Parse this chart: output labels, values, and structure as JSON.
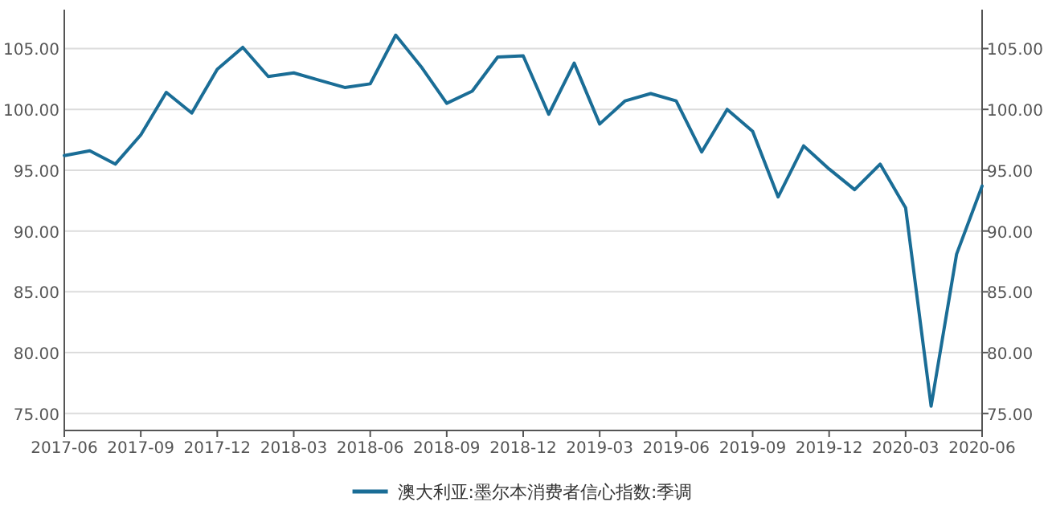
{
  "chart_data": {
    "type": "line",
    "x": [
      "2017-06",
      "2017-07",
      "2017-08",
      "2017-09",
      "2017-10",
      "2017-11",
      "2017-12",
      "2018-01",
      "2018-02",
      "2018-03",
      "2018-04",
      "2018-05",
      "2018-06",
      "2018-07",
      "2018-08",
      "2018-09",
      "2018-10",
      "2018-11",
      "2018-12",
      "2019-01",
      "2019-02",
      "2019-03",
      "2019-04",
      "2019-05",
      "2019-06",
      "2019-07",
      "2019-08",
      "2019-09",
      "2019-10",
      "2019-11",
      "2019-12",
      "2020-01",
      "2020-02",
      "2020-03",
      "2020-04",
      "2020-05",
      "2020-06"
    ],
    "series": [
      {
        "name": "澳大利亚:墨尔本消费者信心指数:季调",
        "color": "#1a6d96",
        "values": [
          96.2,
          96.6,
          95.5,
          97.9,
          101.4,
          99.7,
          103.3,
          105.1,
          102.7,
          103.0,
          102.4,
          101.8,
          102.1,
          106.1,
          103.5,
          100.5,
          101.5,
          104.3,
          104.4,
          99.6,
          103.8,
          98.8,
          100.7,
          101.3,
          100.7,
          96.5,
          100.0,
          98.2,
          92.8,
          97.0,
          95.1,
          93.4,
          95.5,
          91.9,
          75.6,
          88.1,
          93.7
        ]
      }
    ],
    "xlim": [
      "2017-06",
      "2020-06"
    ],
    "xticks": [
      "2017-06",
      "2017-09",
      "2017-12",
      "2018-03",
      "2018-06",
      "2018-09",
      "2018-12",
      "2019-03",
      "2019-06",
      "2019-09",
      "2019-12",
      "2020-03",
      "2020-06"
    ],
    "ylim": [
      73.6,
      108.2
    ],
    "yticks": [
      {
        "value": 75,
        "label": "75.00"
      },
      {
        "value": 80,
        "label": "80.00"
      },
      {
        "value": 85,
        "label": "85.00"
      },
      {
        "value": 90,
        "label": "90.00"
      },
      {
        "value": 95,
        "label": "95.00"
      },
      {
        "value": 100,
        "label": "100.00"
      },
      {
        "value": 105,
        "label": "105.00"
      }
    ],
    "y2lim": [
      73.6,
      108.2
    ],
    "y2ticks": [
      {
        "value": 75,
        "label": "75.00"
      },
      {
        "value": 80,
        "label": "80.00"
      },
      {
        "value": 85,
        "label": "85.00"
      },
      {
        "value": 90,
        "label": "90.00"
      },
      {
        "value": 95,
        "label": "95.00"
      },
      {
        "value": 100,
        "label": "100.00"
      },
      {
        "value": 105,
        "label": "105.00"
      }
    ],
    "grid": "y",
    "legend": "bottom",
    "marker": "none",
    "line_style": "solid"
  }
}
